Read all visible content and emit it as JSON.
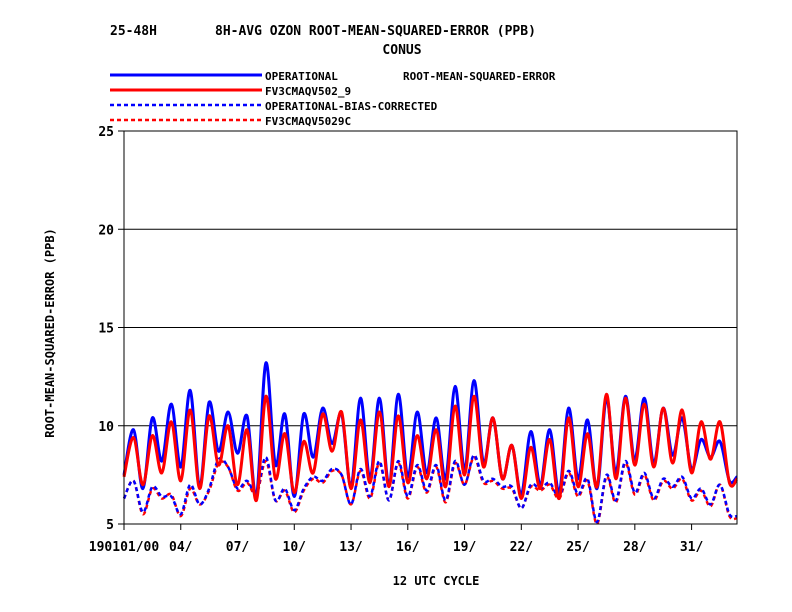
{
  "chart_data": {
    "type": "line",
    "title_left": "25-48H",
    "title": "8H-AVG OZON ROOT-MEAN-SQUARED-ERROR (PPB)",
    "subtitle": "CONUS",
    "stat_label": "ROOT-MEAN-SQUARED-ERROR",
    "xlabel": "12 UTC CYCLE",
    "ylabel": "ROOT-MEAN-SQUARED-ERROR (PPB)",
    "ylim": [
      5,
      25
    ],
    "xlim": [
      1,
      33.4
    ],
    "yticks": [
      5,
      10,
      15,
      20,
      25
    ],
    "xticks": [
      {
        "x": 1,
        "label": "190101/00"
      },
      {
        "x": 4,
        "label": "04/"
      },
      {
        "x": 7,
        "label": "07/"
      },
      {
        "x": 10,
        "label": "10/"
      },
      {
        "x": 13,
        "label": "13/"
      },
      {
        "x": 16,
        "label": "16/"
      },
      {
        "x": 19,
        "label": "19/"
      },
      {
        "x": 22,
        "label": "22/"
      },
      {
        "x": 25,
        "label": "25/"
      },
      {
        "x": 28,
        "label": "28/"
      },
      {
        "x": 31,
        "label": "31/"
      }
    ],
    "grid": "horizontal",
    "legend_position": "top",
    "series": [
      {
        "name": "OPERATIONAL",
        "color": "#0000ff",
        "dash": "solid",
        "x": [
          1,
          1.5,
          2,
          2.5,
          3,
          3.5,
          4,
          4.5,
          5,
          5.5,
          6,
          6.5,
          7,
          7.5,
          8,
          8.5,
          9,
          9.5,
          10,
          10.5,
          11,
          11.5,
          12,
          12.5,
          13,
          13.5,
          14,
          14.5,
          15,
          15.5,
          16,
          16.5,
          17,
          17.5,
          18,
          18.5,
          19,
          19.5,
          20,
          20.5,
          21,
          21.5,
          22,
          22.5,
          23,
          23.5,
          24,
          24.5,
          25,
          25.5,
          26,
          26.5,
          27,
          27.5,
          28,
          28.5,
          29,
          29.5,
          30,
          30.5,
          31,
          31.5,
          32,
          32.5,
          33,
          33.4
        ],
        "y": [
          7.5,
          9.8,
          6.8,
          10.4,
          8.2,
          11.1,
          7.9,
          11.8,
          6.9,
          11.2,
          8.7,
          10.7,
          8.6,
          10.5,
          6.4,
          13.2,
          8.0,
          10.6,
          6.4,
          10.6,
          8.4,
          10.9,
          9.1,
          10.6,
          6.9,
          11.4,
          7.3,
          11.4,
          7.0,
          11.6,
          7.4,
          10.7,
          7.6,
          10.4,
          7.3,
          12.0,
          7.8,
          12.3,
          8.1,
          10.4,
          7.3,
          9.0,
          6.5,
          9.7,
          7.0,
          9.8,
          6.6,
          10.9,
          7.3,
          10.3,
          6.8,
          11.4,
          7.6,
          11.5,
          8.3,
          11.4,
          8.1,
          10.9,
          8.5,
          10.4,
          7.8,
          9.3,
          8.4,
          9.2,
          7.2,
          7.4
        ]
      },
      {
        "name": "FV3CMAQV502_9",
        "color": "#ff0000",
        "dash": "solid",
        "x": [
          1,
          1.5,
          2,
          2.5,
          3,
          3.5,
          4,
          4.5,
          5,
          5.5,
          6,
          6.5,
          7,
          7.5,
          8,
          8.5,
          9,
          9.5,
          10,
          10.5,
          11,
          11.5,
          12,
          12.5,
          13,
          13.5,
          14,
          14.5,
          15,
          15.5,
          16,
          16.5,
          17,
          17.5,
          18,
          18.5,
          19,
          19.5,
          20,
          20.5,
          21,
          21.5,
          22,
          22.5,
          23,
          23.5,
          24,
          24.5,
          25,
          25.5,
          26,
          26.5,
          27,
          27.5,
          28,
          28.5,
          29,
          29.5,
          30,
          30.5,
          31,
          31.5,
          32,
          32.5,
          33,
          33.4
        ],
        "y": [
          7.4,
          9.4,
          7.0,
          9.5,
          7.6,
          10.2,
          7.2,
          10.8,
          6.8,
          10.5,
          8.0,
          10.0,
          7.0,
          9.8,
          6.2,
          11.5,
          7.3,
          9.6,
          6.6,
          9.2,
          7.6,
          10.6,
          8.7,
          10.7,
          6.8,
          10.3,
          7.1,
          10.7,
          6.9,
          10.5,
          7.1,
          9.5,
          7.3,
          9.8,
          6.9,
          11.0,
          7.5,
          11.5,
          7.9,
          10.4,
          7.3,
          9.0,
          6.3,
          8.9,
          6.8,
          9.3,
          6.3,
          10.4,
          6.9,
          9.6,
          6.9,
          11.6,
          7.3,
          11.4,
          8.0,
          11.1,
          7.9,
          10.9,
          8.1,
          10.8,
          7.6,
          10.2,
          8.3,
          10.2,
          7.1,
          7.3
        ]
      },
      {
        "name": "OPERATIONAL-BIAS-CORRECTED",
        "color": "#0000ff",
        "dash": "dashed",
        "x": [
          1,
          1.5,
          2,
          2.5,
          3,
          3.5,
          4,
          4.5,
          5,
          5.5,
          6,
          6.5,
          7,
          7.5,
          8,
          8.5,
          9,
          9.5,
          10,
          10.5,
          11,
          11.5,
          12,
          12.5,
          13,
          13.5,
          14,
          14.5,
          15,
          15.5,
          16,
          16.5,
          17,
          17.5,
          18,
          18.5,
          19,
          19.5,
          20,
          20.5,
          21,
          21.5,
          22,
          22.5,
          23,
          23.5,
          24,
          24.5,
          25,
          25.5,
          26,
          26.5,
          27,
          27.5,
          28,
          28.5,
          29,
          29.5,
          30,
          30.5,
          31,
          31.5,
          32,
          32.5,
          33,
          33.4
        ],
        "y": [
          6.3,
          7.2,
          5.6,
          6.9,
          6.4,
          6.4,
          5.5,
          7.0,
          6.0,
          6.8,
          8.3,
          7.9,
          6.8,
          7.2,
          6.6,
          8.4,
          6.2,
          6.8,
          5.7,
          6.8,
          7.4,
          7.2,
          7.8,
          7.5,
          6.0,
          7.8,
          6.4,
          8.2,
          6.2,
          8.2,
          6.4,
          8.0,
          6.7,
          8.0,
          6.2,
          8.2,
          7.0,
          8.5,
          7.2,
          7.3,
          6.9,
          6.9,
          5.8,
          7.0,
          6.8,
          7.1,
          6.4,
          7.7,
          6.5,
          7.3,
          5.1,
          7.5,
          6.2,
          8.2,
          6.6,
          7.6,
          6.3,
          7.3,
          6.9,
          7.4,
          6.3,
          6.8,
          6.0,
          7.0,
          5.5,
          5.4
        ]
      },
      {
        "name": "FV3CMAQV5029C",
        "color": "#ff0000",
        "dash": "dashed",
        "x": [
          1,
          1.5,
          2,
          2.5,
          3,
          3.5,
          4,
          4.5,
          5,
          5.5,
          6,
          6.5,
          7,
          7.5,
          8,
          8.5,
          9,
          9.5,
          10,
          10.5,
          11,
          11.5,
          12,
          12.5,
          13,
          13.5,
          14,
          14.5,
          15,
          15.5,
          16,
          16.5,
          17,
          17.5,
          18,
          18.5,
          19,
          19.5,
          20,
          20.5,
          21,
          21.5,
          22,
          22.5,
          23,
          23.5,
          24,
          24.5,
          25,
          25.5,
          26,
          26.5,
          27,
          27.5,
          28,
          28.5,
          29,
          29.5,
          30,
          30.5,
          31,
          31.5,
          32,
          32.5,
          33,
          33.4
        ],
        "y": [
          6.3,
          7.2,
          5.5,
          6.8,
          6.3,
          6.5,
          5.4,
          6.8,
          6.0,
          6.7,
          8.1,
          7.9,
          6.7,
          7.1,
          6.5,
          8.2,
          6.2,
          6.7,
          5.6,
          6.7,
          7.3,
          7.1,
          7.7,
          7.5,
          6.0,
          7.7,
          6.3,
          8.1,
          6.2,
          8.1,
          6.3,
          7.9,
          6.6,
          7.9,
          6.1,
          8.1,
          7.0,
          8.4,
          7.1,
          7.2,
          6.8,
          6.8,
          5.8,
          6.9,
          6.7,
          7.0,
          6.3,
          7.6,
          6.4,
          7.2,
          5.0,
          7.4,
          6.1,
          8.1,
          6.5,
          7.5,
          6.2,
          7.2,
          6.8,
          7.3,
          6.2,
          6.7,
          5.9,
          7.0,
          5.4,
          5.3
        ]
      }
    ]
  }
}
